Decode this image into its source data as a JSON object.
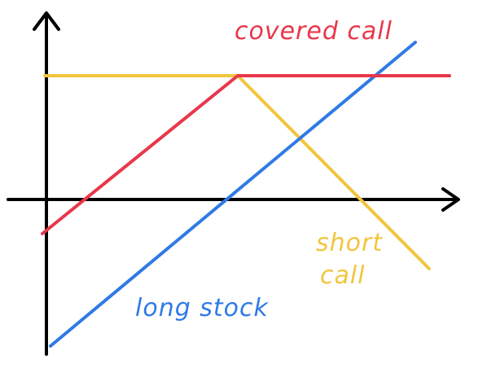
{
  "labels": {
    "covered_call": "covered call",
    "short_call_line1": "short",
    "short_call_line2": "call",
    "long_stock": "long stock"
  },
  "colors": {
    "axes": "#000000",
    "covered_call": "#e8374a",
    "short_call": "#f2c53d",
    "long_stock": "#2f7ae5"
  }
}
